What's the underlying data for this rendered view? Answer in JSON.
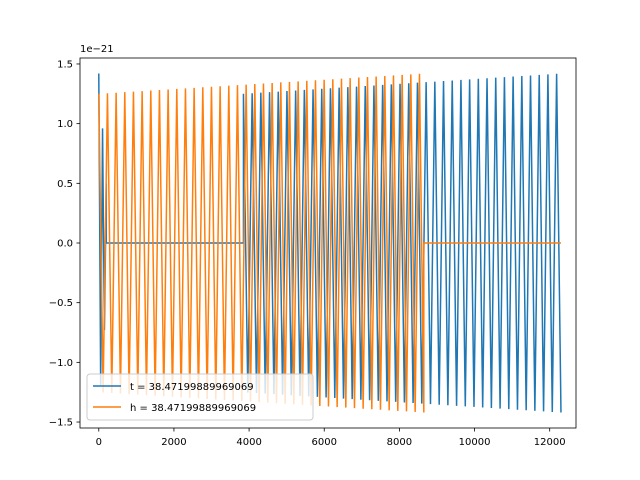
{
  "chart_data": {
    "type": "line",
    "title": "",
    "xlabel": "",
    "ylabel": "",
    "y_offset_label": "1e−21",
    "xlim": [
      -500,
      12700
    ],
    "ylim": [
      -1.55,
      1.55
    ],
    "x_ticks": [
      0,
      2000,
      4000,
      6000,
      8000,
      10000,
      12000
    ],
    "x_tick_labels": [
      "0",
      "2000",
      "4000",
      "6000",
      "8000",
      "10000",
      "12000"
    ],
    "y_ticks": [
      -1.5,
      -1.0,
      -0.5,
      0.0,
      0.5,
      1.0,
      1.5
    ],
    "y_tick_labels": [
      "−1.5",
      "−1.0",
      "−0.5",
      "0.0",
      "0.5",
      "1.0",
      "1.5"
    ],
    "grid": false,
    "legend_position": "lower-left",
    "series": [
      {
        "name": "t = 38.47199889969069",
        "color": "#1f77b4",
        "segments": [
          {
            "kind": "burst",
            "x_start": 0,
            "x_end": 200,
            "amplitude_start": 1.42,
            "amplitude_end": 0.5,
            "period": 100
          },
          {
            "kind": "flat",
            "x_start": 200,
            "x_end": 3850,
            "value": 0.0
          },
          {
            "kind": "oscillation",
            "x_start": 3850,
            "x_end": 12300,
            "amplitude_start": 1.25,
            "amplitude_end": 1.42,
            "period": 230
          }
        ]
      },
      {
        "name": "h = 38.47199889969069",
        "color": "#ff7f0e",
        "segments": [
          {
            "kind": "oscillation",
            "x_start": 0,
            "x_end": 8650,
            "amplitude_start": 1.25,
            "amplitude_end": 1.42,
            "period": 230
          },
          {
            "kind": "flat",
            "x_start": 8650,
            "x_end": 12300,
            "value": 0.0
          }
        ]
      }
    ]
  }
}
